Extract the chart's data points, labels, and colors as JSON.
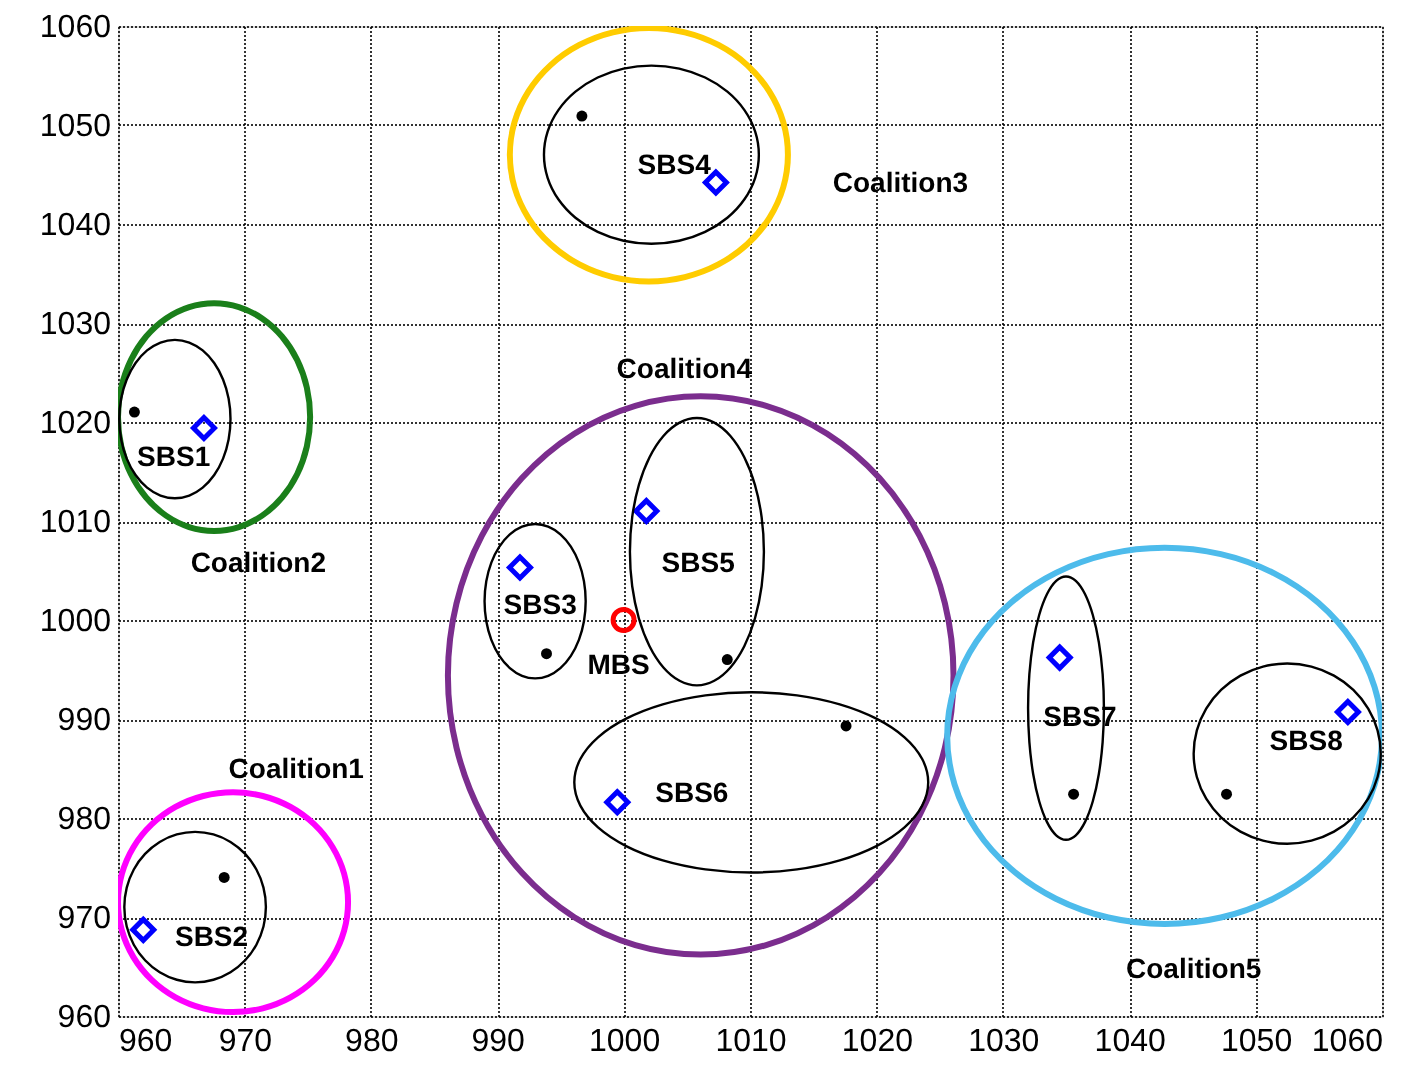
{
  "chart_data": {
    "type": "scatter",
    "xlim": [
      960,
      1060
    ],
    "ylim": [
      960,
      1060
    ],
    "xticks": [
      960,
      970,
      980,
      990,
      1000,
      1010,
      1020,
      1030,
      1040,
      1050,
      1060
    ],
    "yticks": [
      960,
      970,
      980,
      990,
      1000,
      1010,
      1020,
      1030,
      1040,
      1050,
      1060
    ],
    "grid": true,
    "series": [
      {
        "marker": "circle",
        "color": "#000000",
        "x": [
          961.3,
          996.7,
          968.4,
          993.9,
          1008.2,
          1017.6,
          1035.6,
          1047.7
        ],
        "values": [
          1021,
          1050.9,
          974,
          996.6,
          996,
          989.3,
          982.4,
          982.4
        ]
      },
      {
        "marker": "diamond",
        "color": "#0000ff",
        "x": [
          966.8,
          962,
          991.8,
          1007.3,
          1001.8,
          999.5,
          1034.5,
          1057.3
        ],
        "values": [
          1019.4,
          968.7,
          1005.3,
          1044.2,
          1011,
          981.6,
          996.2,
          990.7
        ]
      },
      {
        "marker": "circle",
        "color": "#ff0000",
        "x": [
          1000
        ],
        "values": [
          1000
        ]
      }
    ],
    "annotations": [
      "SBS1",
      "SBS2",
      "SBS3",
      "SBS4",
      "SBS5",
      "SBS6",
      "SBS7",
      "SBS8",
      "MBS",
      "Coalition1",
      "Coalition2",
      "Coalition3",
      "Coalition4",
      "Coalition5"
    ]
  }
}
